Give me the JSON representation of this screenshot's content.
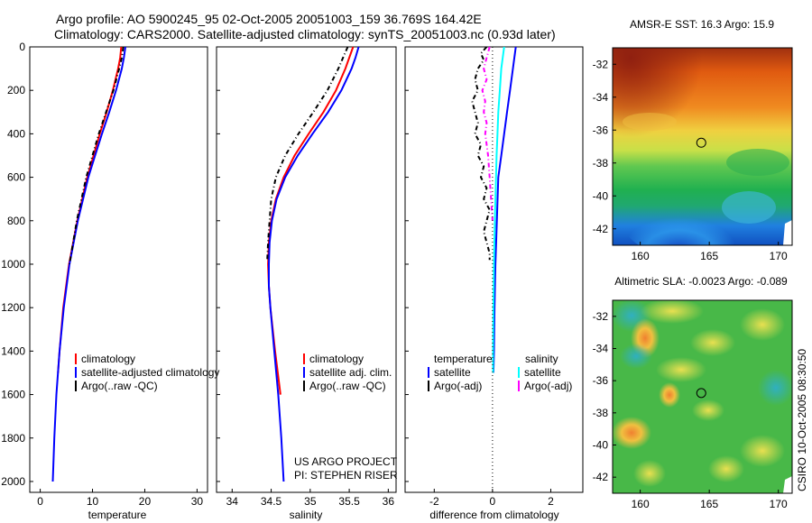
{
  "header": {
    "title_line1": "Argo profile: AO 5900245_95 02-Oct-2005 20051003_159 36.769S 164.42E",
    "title_line2": "Climatology: CARS2000. Satellite-adjusted climatology: synTS_20051003.nc (0.93d later)"
  },
  "side_label": "CSIRO 10-Oct-2005 08:30:50",
  "chart_data": [
    {
      "id": "temperature",
      "type": "line",
      "xlabel": "temperature",
      "ylabel": "",
      "xlim": [
        -2,
        32
      ],
      "ylim": [
        2050,
        0
      ],
      "xticks": [
        0,
        10,
        20,
        30
      ],
      "yticks": [
        0,
        200,
        400,
        600,
        800,
        1000,
        1200,
        1400,
        1600,
        1800,
        2000
      ],
      "legend": [
        "climatology",
        "satellite-adjusted climatology",
        "Argo(..raw -QC)"
      ],
      "series": [
        {
          "name": "climatology",
          "color": "#ff0000",
          "dash": "",
          "depth": [
            0,
            50,
            100,
            200,
            300,
            400,
            500,
            600,
            800,
            1000,
            1200,
            1400,
            1500
          ],
          "values": [
            15.5,
            15.3,
            14.9,
            13.9,
            12.7,
            11.4,
            10.2,
            9.0,
            7.1,
            5.5,
            4.4,
            3.7,
            3.4
          ]
        },
        {
          "name": "satellite-adjusted climatology",
          "color": "#0000ff",
          "dash": "",
          "depth": [
            0,
            50,
            100,
            200,
            300,
            400,
            500,
            600,
            800,
            1000,
            1200,
            1400,
            1600,
            1800,
            2000
          ],
          "values": [
            16.3,
            16.0,
            15.6,
            14.5,
            13.2,
            11.8,
            10.5,
            9.2,
            7.2,
            5.6,
            4.5,
            3.7,
            3.1,
            2.7,
            2.4
          ]
        },
        {
          "name": "Argo(..raw -QC)",
          "color": "#000000",
          "dash": "5,3,1,3",
          "depth": [
            0,
            50,
            100,
            200,
            300,
            400,
            500,
            600,
            800,
            1000
          ],
          "values": [
            15.9,
            15.6,
            15.1,
            14.0,
            12.6,
            11.2,
            10.0,
            8.8,
            7.0,
            5.6
          ]
        }
      ]
    },
    {
      "id": "salinity",
      "type": "line",
      "xlabel": "salinity",
      "xlim": [
        33.8,
        36.1
      ],
      "ylim": [
        2050,
        0
      ],
      "xticks": [
        34,
        34.5,
        35,
        35.5,
        36
      ],
      "legend": [
        "climatology",
        "satellite adj. clim.",
        "Argo(..raw -QC)"
      ],
      "annotations": [
        "US ARGO PROJECT",
        "PI: STEPHEN RISER"
      ],
      "series": [
        {
          "name": "climatology",
          "color": "#ff0000",
          "dash": "",
          "depth": [
            0,
            50,
            100,
            200,
            300,
            400,
            500,
            600,
            700,
            800,
            900,
            1000,
            1100,
            1200,
            1400,
            1600
          ],
          "values": [
            35.55,
            35.5,
            35.45,
            35.33,
            35.17,
            34.98,
            34.8,
            34.66,
            34.56,
            34.5,
            34.47,
            34.46,
            34.47,
            34.49,
            34.55,
            34.62
          ]
        },
        {
          "name": "satellite adj. clim.",
          "color": "#0000ff",
          "dash": "",
          "depth": [
            0,
            50,
            100,
            200,
            300,
            400,
            500,
            600,
            700,
            800,
            900,
            1000,
            1100,
            1200,
            1400,
            1600,
            1800,
            2000
          ],
          "values": [
            35.62,
            35.58,
            35.53,
            35.4,
            35.23,
            35.03,
            34.84,
            34.68,
            34.57,
            34.51,
            34.48,
            34.47,
            34.47,
            34.49,
            34.54,
            34.59,
            34.63,
            34.66
          ]
        },
        {
          "name": "Argo(..raw -QC)",
          "color": "#000000",
          "dash": "5,3,1,3",
          "depth": [
            0,
            50,
            100,
            200,
            300,
            400,
            500,
            600,
            700,
            800,
            900,
            980
          ],
          "values": [
            35.48,
            35.42,
            35.36,
            35.22,
            35.04,
            34.85,
            34.68,
            34.56,
            34.5,
            34.48,
            34.46,
            34.45
          ]
        }
      ]
    },
    {
      "id": "difference",
      "type": "line",
      "xlabel": "difference from climatology",
      "xlim": [
        -3,
        3.1
      ],
      "ylim": [
        2050,
        0
      ],
      "xticks": [
        -2,
        0,
        2
      ],
      "legend_headers": [
        "temperature",
        "salinity"
      ],
      "legend": [
        "satellite",
        "Argo(-adj)",
        "satellite",
        "Argo(-adj)"
      ],
      "series": [
        {
          "name": "temperature satellite",
          "color": "#0000ff",
          "dash": "",
          "depth": [
            0,
            50,
            100,
            200,
            300,
            400,
            500,
            600,
            800,
            1000,
            1200,
            1400,
            1500
          ],
          "values": [
            0.8,
            0.75,
            0.7,
            0.6,
            0.5,
            0.4,
            0.3,
            0.2,
            0.15,
            0.1,
            0.07,
            0.05,
            0.03
          ]
        },
        {
          "name": "temperature Argo(-adj)",
          "color": "#000000",
          "dash": "5,3,1,3",
          "depth": [
            0,
            30,
            60,
            100,
            150,
            200,
            250,
            300,
            350,
            400,
            450,
            500,
            550,
            600,
            650,
            700,
            750,
            800,
            850,
            900,
            950,
            980
          ],
          "values": [
            -0.2,
            -0.4,
            -0.3,
            -0.5,
            -0.6,
            -0.5,
            -0.7,
            -0.6,
            -0.5,
            -0.6,
            -0.4,
            -0.5,
            -0.3,
            -0.4,
            -0.2,
            -0.3,
            -0.1,
            -0.2,
            -0.3,
            -0.2,
            -0.1,
            -0.1
          ]
        },
        {
          "name": "salinity satellite",
          "color": "#00ffff",
          "dash": "",
          "depth": [
            0,
            50,
            100,
            200,
            300,
            400,
            500,
            600,
            800,
            1000,
            1200,
            1400,
            1500
          ],
          "values": [
            0.4,
            0.35,
            0.3,
            0.25,
            0.2,
            0.17,
            0.14,
            0.12,
            0.08,
            0.05,
            0.03,
            0.02,
            0.02
          ]
        },
        {
          "name": "salinity Argo(-adj)",
          "color": "#ff00ff",
          "dash": "5,3,1,3",
          "depth": [
            0,
            50,
            100,
            150,
            200,
            250,
            300,
            350,
            400,
            500,
            600,
            700,
            800
          ],
          "values": [
            -0.1,
            -0.2,
            -0.3,
            -0.2,
            -0.35,
            -0.25,
            -0.3,
            -0.2,
            -0.25,
            -0.15,
            -0.1,
            -0.05,
            0
          ]
        }
      ]
    },
    {
      "id": "sst-map",
      "type": "heatmap",
      "title": "AMSR-E SST: 16.3 Argo: 15.9",
      "xlim": [
        158,
        171
      ],
      "ylim": [
        -43,
        -31
      ],
      "xticks": [
        160,
        165,
        170
      ],
      "yticks": [
        -32,
        -34,
        -36,
        -38,
        -40,
        -42
      ],
      "marker": {
        "lon": 164.42,
        "lat": -36.769
      }
    },
    {
      "id": "sla-map",
      "type": "heatmap",
      "title": "Altimetric SLA: -0.0023 Argo: -0.089",
      "xlim": [
        158,
        171
      ],
      "ylim": [
        -43,
        -31
      ],
      "xticks": [
        160,
        165,
        170
      ],
      "yticks": [
        -32,
        -34,
        -36,
        -38,
        -40,
        -42
      ],
      "marker": {
        "lon": 164.42,
        "lat": -36.769
      }
    }
  ]
}
